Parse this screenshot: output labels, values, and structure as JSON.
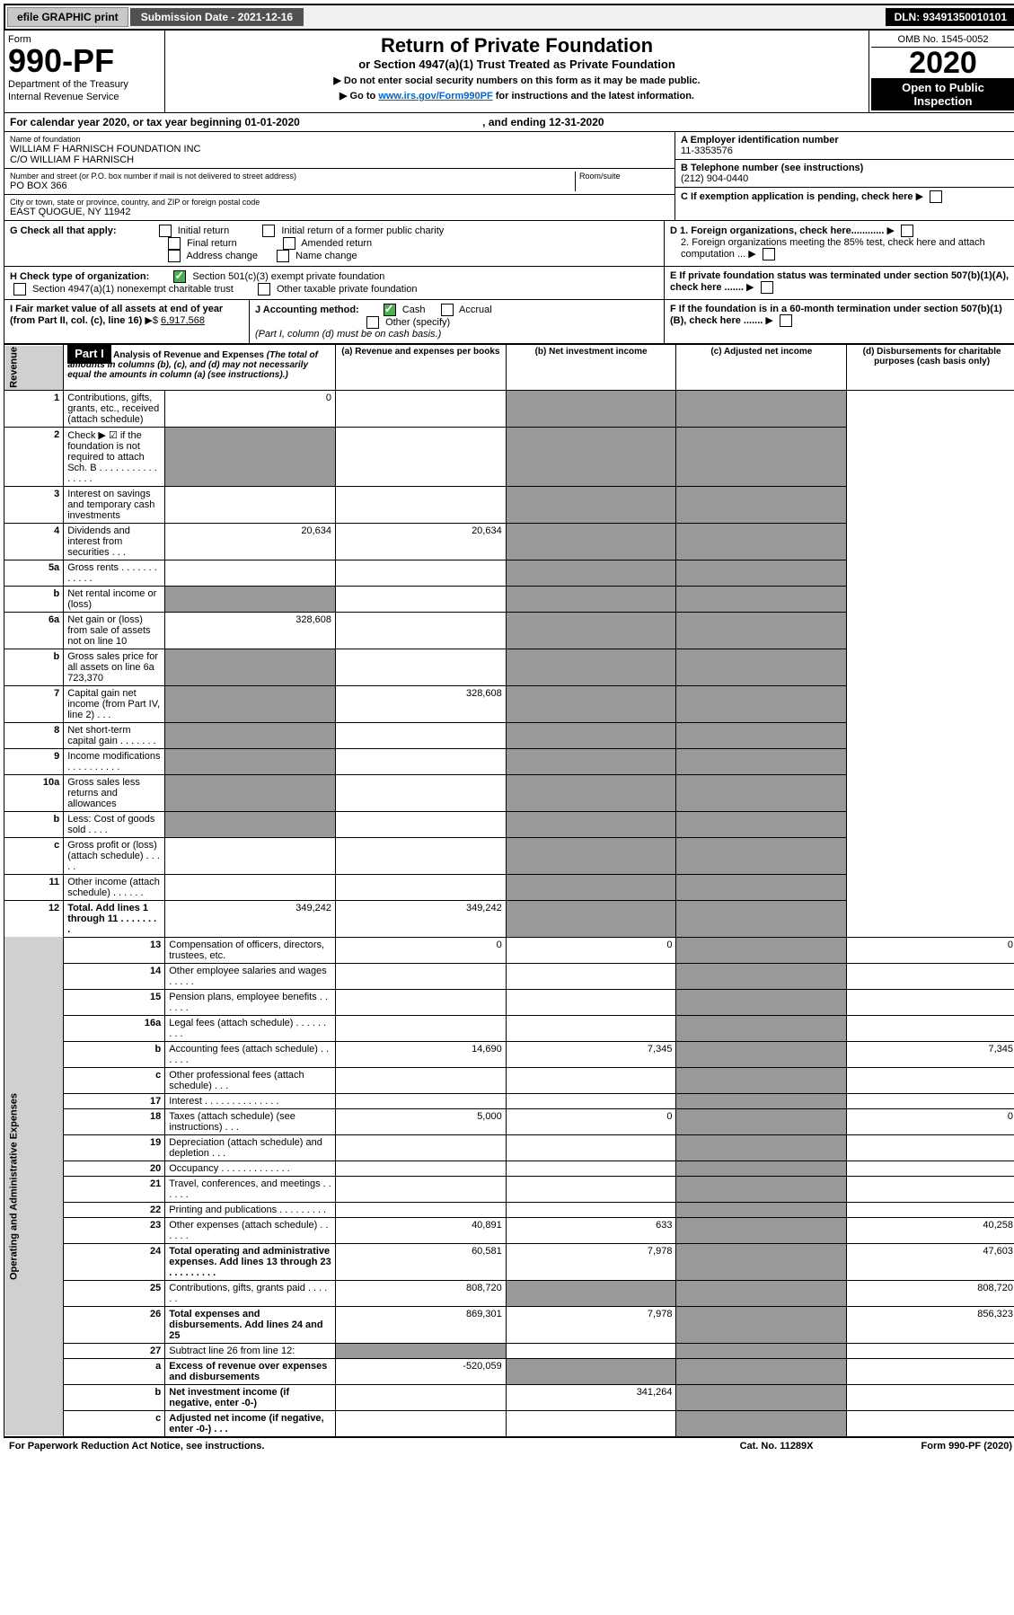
{
  "topbar": {
    "efile": "efile GRAPHIC print",
    "subdate_label": "Submission Date - 2021-12-16",
    "dln": "DLN: 93491350010101"
  },
  "head": {
    "form_word": "Form",
    "form_no": "990-PF",
    "dept1": "Department of the Treasury",
    "dept2": "Internal Revenue Service",
    "title": "Return of Private Foundation",
    "sub": "or Section 4947(a)(1) Trust Treated as Private Foundation",
    "note1": "▶ Do not enter social security numbers on this form as it may be made public.",
    "note2_pre": "▶ Go to ",
    "note2_link": "www.irs.gov/Form990PF",
    "note2_post": " for instructions and the latest information.",
    "omb": "OMB No. 1545-0052",
    "year": "2020",
    "inspect1": "Open to Public",
    "inspect2": "Inspection"
  },
  "cal": {
    "text": "For calendar year 2020, or tax year beginning 01-01-2020",
    "end": ", and ending 12-31-2020"
  },
  "info": {
    "name_lbl": "Name of foundation",
    "name1": "WILLIAM F HARNISCH FOUNDATION INC",
    "name2": "C/O WILLIAM F HARNISCH",
    "addr_lbl": "Number and street (or P.O. box number if mail is not delivered to street address)",
    "room_lbl": "Room/suite",
    "addr": "PO BOX 366",
    "city_lbl": "City or town, state or province, country, and ZIP or foreign postal code",
    "city": "EAST QUOGUE, NY  11942",
    "ein_lbl": "A Employer identification number",
    "ein": "11-3353576",
    "tel_lbl": "B Telephone number (see instructions)",
    "tel": "(212) 904-0440",
    "c_lbl": "C If exemption application is pending, check here",
    "d1": "D 1. Foreign organizations, check here............",
    "d2": "2. Foreign organizations meeting the 85% test, check here and attach computation ...",
    "e": "E  If private foundation status was terminated under section 507(b)(1)(A), check here .......",
    "f": "F  If the foundation is in a 60-month termination under section 507(b)(1)(B), check here ......."
  },
  "g": {
    "label": "G Check all that apply:",
    "opts": [
      "Initial return",
      "Final return",
      "Address change",
      "Initial return of a former public charity",
      "Amended return",
      "Name change"
    ]
  },
  "h": {
    "label": "H Check type of organization:",
    "o1": "Section 501(c)(3) exempt private foundation",
    "o2": "Section 4947(a)(1) nonexempt charitable trust",
    "o3": "Other taxable private foundation"
  },
  "i": {
    "label": "I Fair market value of all assets at end of year (from Part II, col. (c), line 16)",
    "arrow": "▶$",
    "val": "6,917,568"
  },
  "j": {
    "label": "J Accounting method:",
    "cash": "Cash",
    "accrual": "Accrual",
    "other": "Other (specify)",
    "note": "(Part I, column (d) must be on cash basis.)"
  },
  "part1": {
    "tag": "Part I",
    "title": "Analysis of Revenue and Expenses",
    "note": "(The total of amounts in columns (b), (c), and (d) may not necessarily equal the amounts in column (a) (see instructions).)",
    "ca": "(a)   Revenue and expenses per books",
    "cb": "(b)   Net investment income",
    "cc": "(c)   Adjusted net income",
    "cd": "(d)  Disbursements for charitable purposes (cash basis only)"
  },
  "sides": {
    "rev": "Revenue",
    "exp": "Operating and Administrative Expenses"
  },
  "rows": [
    {
      "n": "1",
      "d": "Contributions, gifts, grants, etc., received (attach schedule)",
      "a": "0"
    },
    {
      "n": "2",
      "d": "Check ▶ ☑ if the foundation is not required to attach Sch. B        .   .   .   .   .   .   .   .   .   .   .   .   .   .   .   ."
    },
    {
      "n": "3",
      "d": "Interest on savings and temporary cash investments"
    },
    {
      "n": "4",
      "d": "Dividends and interest from securities   .   .   .",
      "a": "20,634",
      "b": "20,634"
    },
    {
      "n": "5a",
      "d": "Gross rents   .   .   .   .   .   .   .   .   .   .   .   ."
    },
    {
      "n": "b",
      "d": "Net rental income or (loss)"
    },
    {
      "n": "6a",
      "d": "Net gain or (loss) from sale of assets not on line 10",
      "a": "328,608"
    },
    {
      "n": "b",
      "d": "Gross sales price for all assets on line 6a            723,370"
    },
    {
      "n": "7",
      "d": "Capital gain net income (from Part IV, line 2)   .   .   .",
      "b": "328,608"
    },
    {
      "n": "8",
      "d": "Net short-term capital gain   .   .   .   .   .   .   ."
    },
    {
      "n": "9",
      "d": "Income modifications .   .   .   .   .   .   .   .   .   ."
    },
    {
      "n": "10a",
      "d": "Gross sales less returns and allowances"
    },
    {
      "n": "b",
      "d": "Less: Cost of goods sold   .   .   .   ."
    },
    {
      "n": "c",
      "d": "Gross profit or (loss) (attach schedule)   .   .   .   .   ."
    },
    {
      "n": "11",
      "d": "Other income (attach schedule)   .   .   .   .   .   ."
    },
    {
      "n": "12",
      "d": "Total. Add lines 1 through 11   .   .   .   .   .   .   .   .",
      "a": "349,242",
      "b": "349,242",
      "bold": true
    },
    {
      "n": "13",
      "d": "Compensation of officers, directors, trustees, etc.",
      "a": "0",
      "b": "0",
      "dd": "0"
    },
    {
      "n": "14",
      "d": "Other employee salaries and wages   .   .   .   .   ."
    },
    {
      "n": "15",
      "d": "Pension plans, employee benefits   .   .   .   .   .   ."
    },
    {
      "n": "16a",
      "d": "Legal fees (attach schedule) .   .   .   .   .   .   .   .   ."
    },
    {
      "n": "b",
      "d": "Accounting fees (attach schedule)   .   .   .   .   .   .",
      "a": "14,690",
      "b": "7,345",
      "dd": "7,345"
    },
    {
      "n": "c",
      "d": "Other professional fees (attach schedule)   .   .   ."
    },
    {
      "n": "17",
      "d": "Interest  .   .   .   .   .   .   .   .   .   .   .   .   .   ."
    },
    {
      "n": "18",
      "d": "Taxes (attach schedule) (see instructions)   .   .   .",
      "a": "5,000",
      "b": "0",
      "dd": "0"
    },
    {
      "n": "19",
      "d": "Depreciation (attach schedule) and depletion   .   .   ."
    },
    {
      "n": "20",
      "d": "Occupancy .   .   .   .   .   .   .   .   .   .   .   .   ."
    },
    {
      "n": "21",
      "d": "Travel, conferences, and meetings .   .   .   .   .   ."
    },
    {
      "n": "22",
      "d": "Printing and publications   .   .   .   .   .   .   .   .   ."
    },
    {
      "n": "23",
      "d": "Other expenses (attach schedule)   .   .   .   .   .   .",
      "a": "40,891",
      "b": "633",
      "dd": "40,258"
    },
    {
      "n": "24",
      "d": "Total operating and administrative expenses. Add lines 13 through 23   .   .   .   .   .   .   .   .   .",
      "a": "60,581",
      "b": "7,978",
      "dd": "47,603",
      "bold": true
    },
    {
      "n": "25",
      "d": "Contributions, gifts, grants paid   .   .   .   .   .   .",
      "a": "808,720",
      "dd": "808,720"
    },
    {
      "n": "26",
      "d": "Total expenses and disbursements. Add lines 24 and 25",
      "a": "869,301",
      "b": "7,978",
      "dd": "856,323",
      "bold": true
    },
    {
      "n": "27",
      "d": "Subtract line 26 from line 12:"
    },
    {
      "n": "a",
      "d": "Excess of revenue over expenses and disbursements",
      "a": "-520,059",
      "bold": true
    },
    {
      "n": "b",
      "d": "Net investment income (if negative, enter -0-)",
      "b": "341,264",
      "bold": true
    },
    {
      "n": "c",
      "d": "Adjusted net income (if negative, enter -0-)   .   .   .",
      "bold": true
    }
  ],
  "foot": {
    "left": "For Paperwork Reduction Act Notice, see instructions.",
    "mid": "Cat. No. 11289X",
    "right": "Form 990-PF (2020)"
  }
}
